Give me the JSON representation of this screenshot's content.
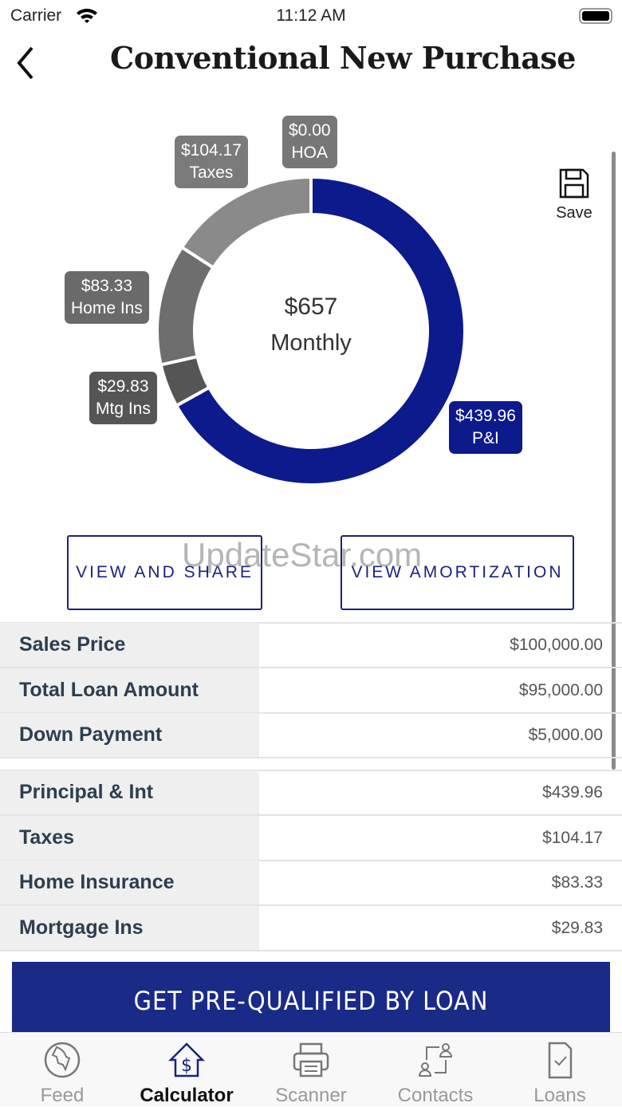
{
  "status": {
    "carrier": "Carrier",
    "time": "11:12 AM"
  },
  "header": {
    "title": "Conventional New Purchase",
    "save_label": "Save"
  },
  "chart_data": {
    "type": "pie",
    "center_value": "$657",
    "center_label": "Monthly",
    "slices": [
      {
        "name": "P&I",
        "value": 439.96,
        "label": "$439.96",
        "color": "#0d1a8c"
      },
      {
        "name": "Mtg Ins",
        "value": 29.83,
        "label": "$29.83",
        "color": "#555555"
      },
      {
        "name": "Home Ins",
        "value": 83.33,
        "label": "$83.33",
        "color": "#6e6e6e"
      },
      {
        "name": "Taxes",
        "value": 104.17,
        "label": "$104.17",
        "color": "#8a8a8a"
      },
      {
        "name": "HOA",
        "value": 0,
        "label": "$0.00",
        "color": "#777777"
      }
    ]
  },
  "buttons": {
    "view_share": "VIEW AND SHARE",
    "view_amortization": "VIEW AMORTIZATION",
    "prequalify": "GET PRE-QUALIFIED BY LOAN"
  },
  "watermark": "UpdateStar.com",
  "loan_rows": [
    {
      "label": "Sales Price",
      "value": "$100,000.00"
    },
    {
      "label": "Total Loan Amount",
      "value": "$95,000.00"
    },
    {
      "label": "Down Payment",
      "value": "$5,000.00"
    }
  ],
  "payment_rows": [
    {
      "label": "Principal & Int",
      "value": "$439.96"
    },
    {
      "label": "Taxes",
      "value": "$104.17"
    },
    {
      "label": "Home Insurance",
      "value": "$83.33"
    },
    {
      "label": "Mortgage Ins",
      "value": "$29.83"
    }
  ],
  "tabs": [
    {
      "label": "Feed"
    },
    {
      "label": "Calculator",
      "active": true
    },
    {
      "label": "Scanner"
    },
    {
      "label": "Contacts"
    },
    {
      "label": "Loans"
    }
  ]
}
